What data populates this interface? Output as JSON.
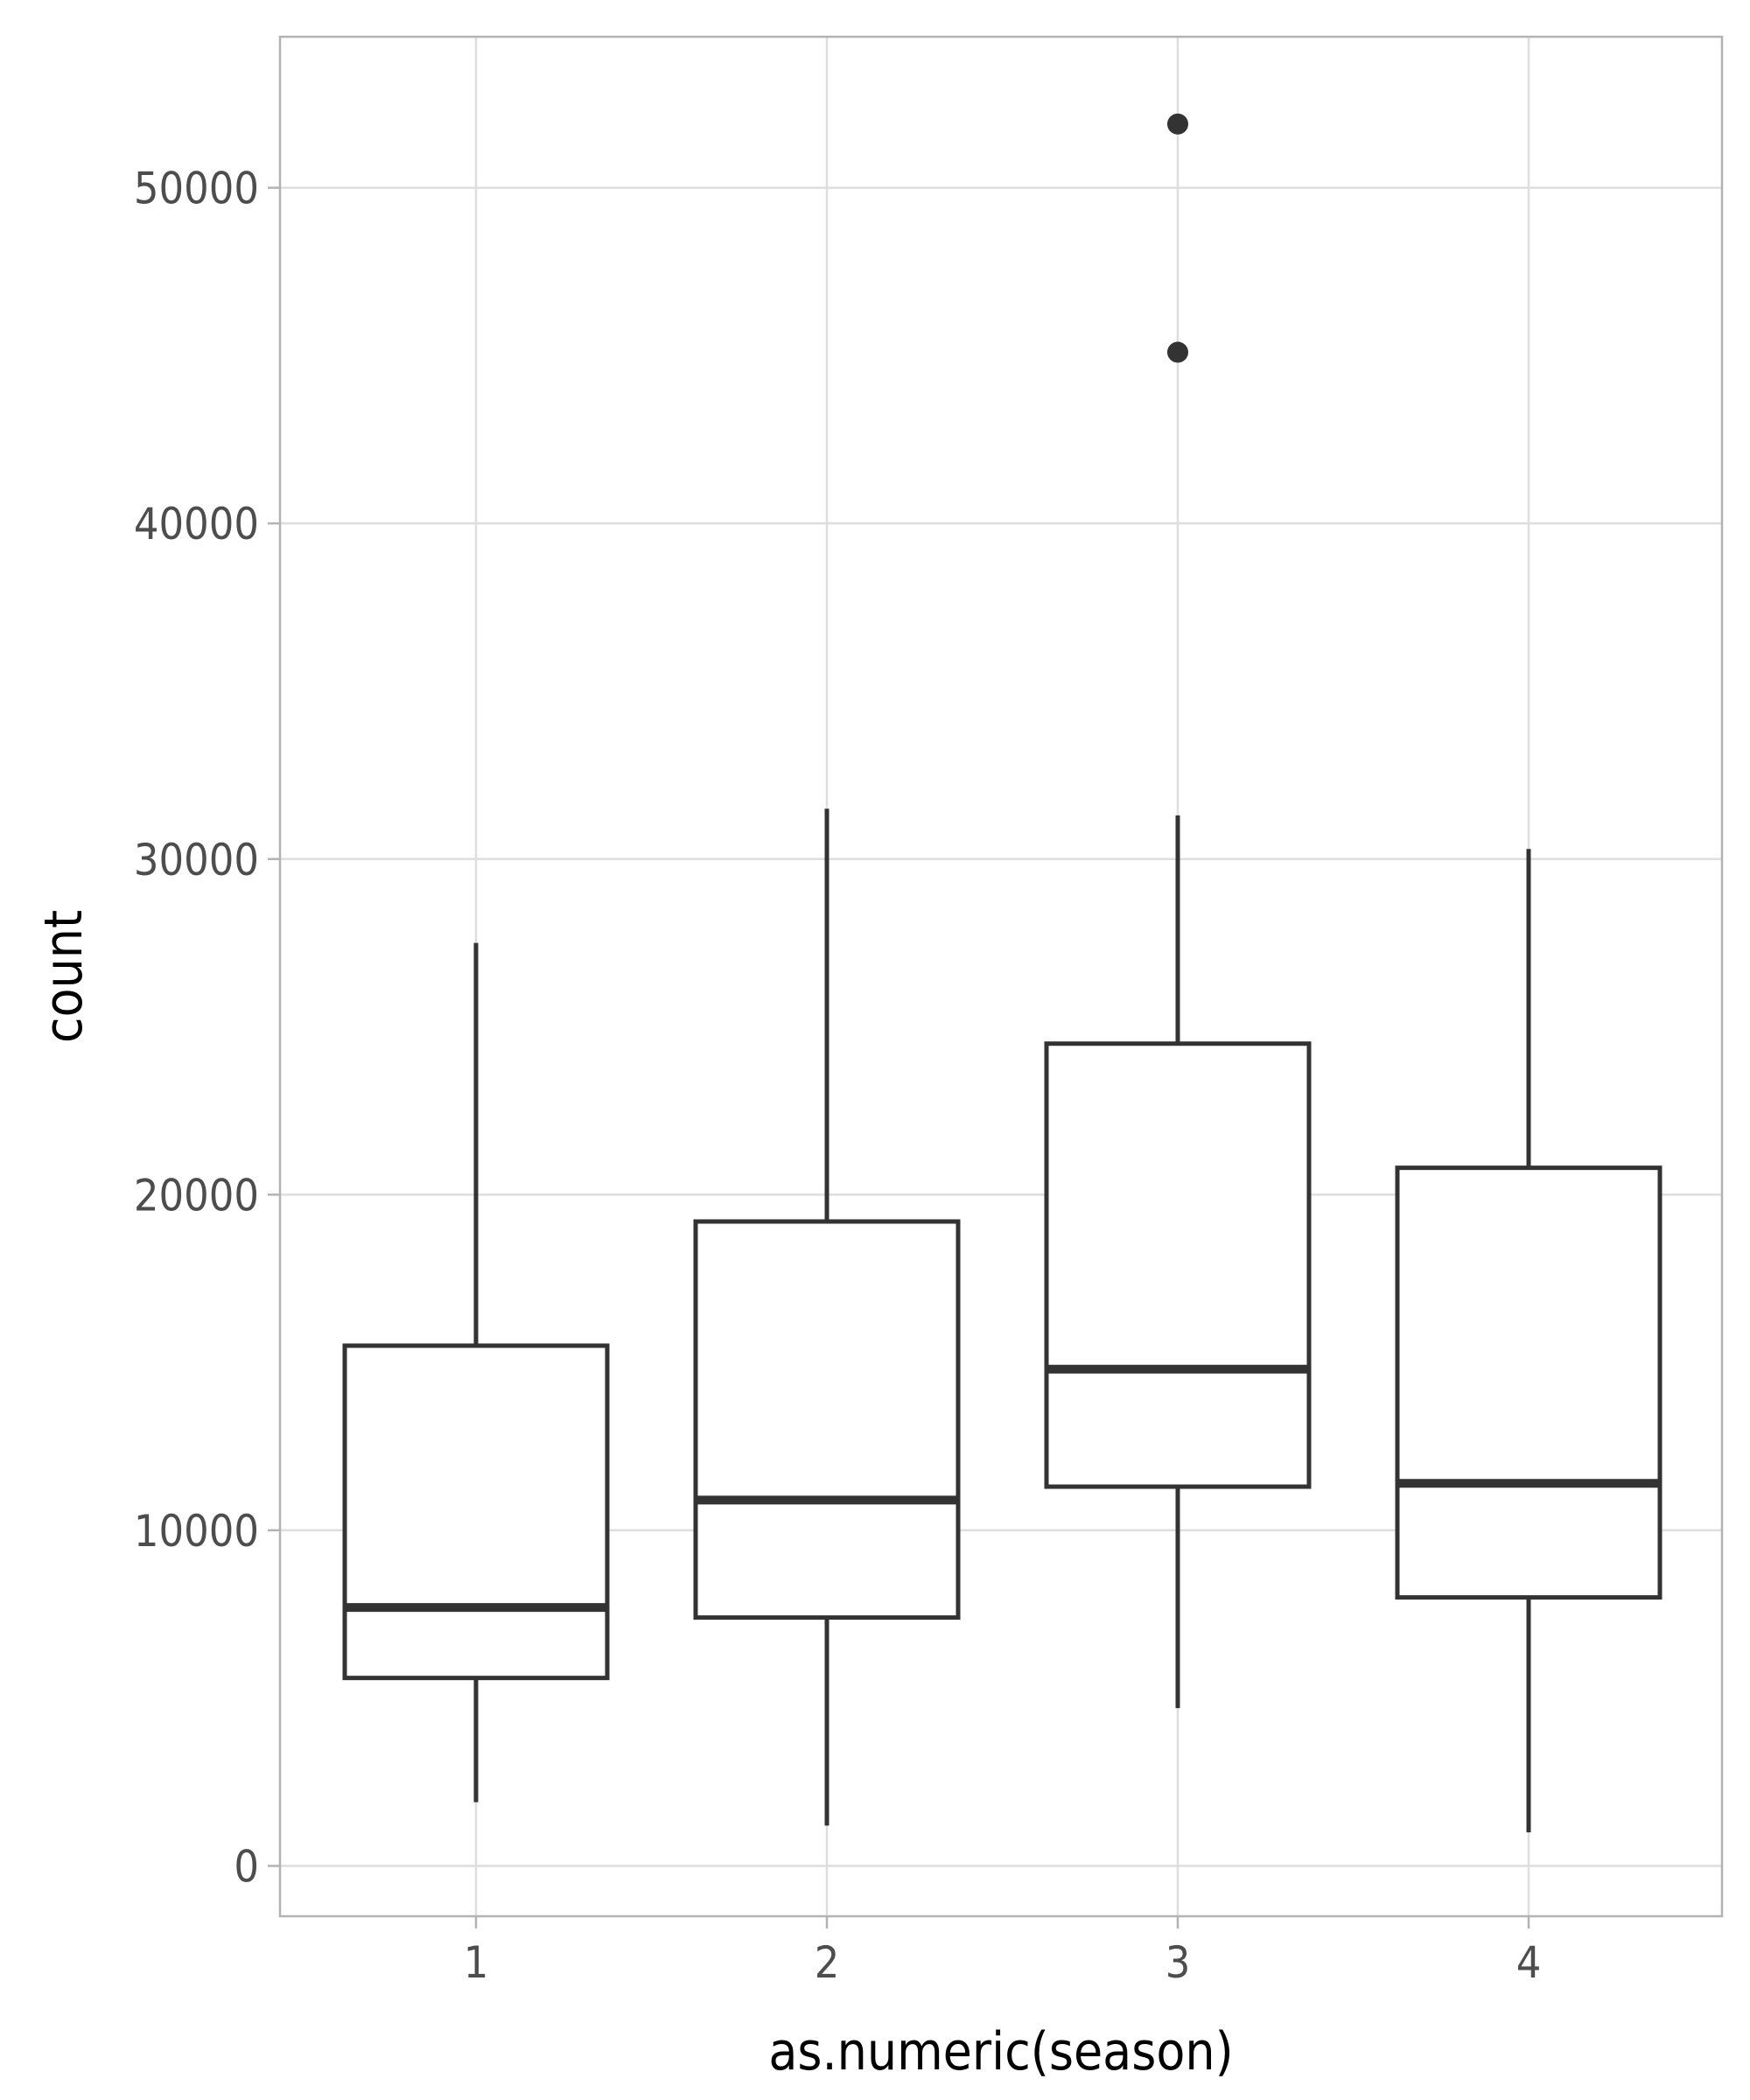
{
  "chart_data": {
    "type": "boxplot",
    "title": "",
    "xlabel": "as.numeric(season)",
    "ylabel": "count",
    "categories": [
      "1",
      "2",
      "3",
      "4"
    ],
    "ylim": [
      -1500,
      54500
    ],
    "y_ticks": [
      0,
      10000,
      20000,
      30000,
      40000,
      50000
    ],
    "y_tick_labels": [
      "0",
      "10000",
      "20000",
      "30000",
      "40000",
      "50000"
    ],
    "grid": true,
    "boxes": [
      {
        "category": "1",
        "whisker_low": 1900,
        "q1": 5600,
        "median": 7700,
        "q3": 15500,
        "whisker_high": 27500,
        "outliers": []
      },
      {
        "category": "2",
        "whisker_low": 1200,
        "q1": 7400,
        "median": 10900,
        "q3": 19200,
        "whisker_high": 31500,
        "outliers": []
      },
      {
        "category": "3",
        "whisker_low": 4700,
        "q1": 11300,
        "median": 14800,
        "q3": 24500,
        "whisker_high": 31300,
        "outliers": [
          45100,
          51900
        ]
      },
      {
        "category": "4",
        "whisker_low": 1000,
        "q1": 8000,
        "median": 11400,
        "q3": 20800,
        "whisker_high": 30300,
        "outliers": []
      }
    ],
    "colors": {
      "box_line": "#333333",
      "box_fill": "#ffffff",
      "grid": "#dedede",
      "panel_border": "#b3b3b3",
      "background": "#ffffff"
    }
  }
}
